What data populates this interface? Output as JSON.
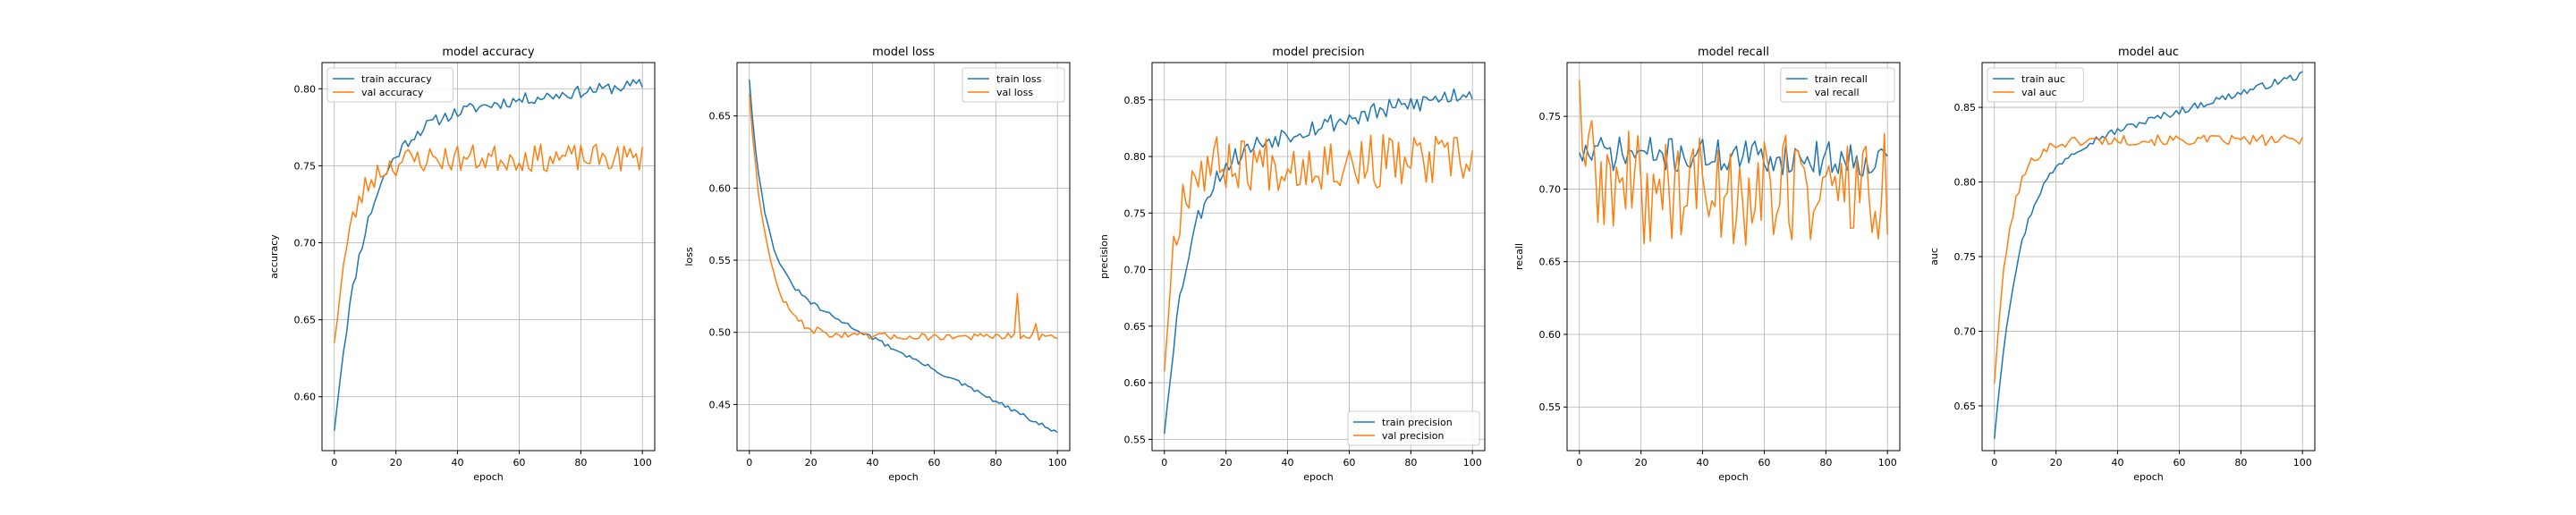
{
  "figure": {
    "background": "#ffffff"
  },
  "colors": {
    "train": "#1f77b4",
    "val": "#ff7f0e"
  },
  "chart_data": [
    {
      "type": "line",
      "title": "model accuracy",
      "xlabel": "epoch",
      "ylabel": "accuracy",
      "xlim": [
        -4,
        104
      ],
      "ylim": [
        0.565,
        0.817
      ],
      "xticks": [
        "0",
        "20",
        "40",
        "60",
        "80",
        "100"
      ],
      "yticks": [
        "0.60",
        "0.65",
        "0.70",
        "0.75",
        "0.80"
      ],
      "legend": "upper left",
      "grid": true,
      "series": [
        {
          "name": "train accuracy",
          "color": "#1f77b4",
          "start": 0.578,
          "end": 0.803,
          "k": 0.1,
          "w": 0.82,
          "lt": 0.1,
          "noise": 0.004,
          "seed": 11,
          "values": []
        },
        {
          "name": "val accuracy",
          "color": "#ff7f0e",
          "start": 0.635,
          "end": 0.755,
          "k": 0.18,
          "w": 0.97,
          "lt": 0.0,
          "noise": 0.009,
          "seed": 23,
          "values": []
        }
      ]
    },
    {
      "type": "line",
      "title": "model loss",
      "xlabel": "epoch",
      "ylabel": "loss",
      "xlim": [
        -4,
        104
      ],
      "ylim": [
        0.418,
        0.687
      ],
      "xticks": [
        "0",
        "20",
        "40",
        "60",
        "80",
        "100"
      ],
      "yticks": [
        "0.45",
        "0.50",
        "0.55",
        "0.60",
        "0.65"
      ],
      "legend": "upper right",
      "grid": true,
      "series": [
        {
          "name": "train loss",
          "color": "#1f77b4",
          "start": 0.675,
          "end": 0.43,
          "k": 0.2,
          "w": 0.55,
          "lt": 0.45,
          "noise": 0.0015,
          "seed": 31,
          "values": []
        },
        {
          "name": "val loss",
          "color": "#ff7f0e",
          "start": 0.665,
          "end": 0.497,
          "k": 0.17,
          "w": 0.98,
          "lt": 0.0,
          "noise": 0.0025,
          "seed": 47,
          "spikes": [
            [
              87,
              0.527
            ],
            [
              93,
              0.506
            ]
          ],
          "values": []
        }
      ]
    },
    {
      "type": "line",
      "title": "model precision",
      "xlabel": "epoch",
      "ylabel": "precision",
      "xlim": [
        -4,
        104
      ],
      "ylim": [
        0.54,
        0.883
      ],
      "xticks": [
        "0",
        "20",
        "40",
        "60",
        "80",
        "100"
      ],
      "yticks": [
        "0.55",
        "0.60",
        "0.65",
        "0.70",
        "0.75",
        "0.80",
        "0.85"
      ],
      "legend": "lower right",
      "grid": true,
      "series": [
        {
          "name": "train precision",
          "color": "#1f77b4",
          "start": 0.555,
          "end": 0.858,
          "k": 0.13,
          "w": 0.8,
          "lt": 0.2,
          "noise": 0.009,
          "seed": 53,
          "values": []
        },
        {
          "name": "val precision",
          "color": "#ff7f0e",
          "start": 0.61,
          "end": 0.795,
          "k": 0.3,
          "w": 1.0,
          "lt": 0.0,
          "noise": 0.025,
          "seed": 67,
          "values": []
        }
      ]
    },
    {
      "type": "line",
      "title": "model recall",
      "xlabel": "epoch",
      "ylabel": "recall",
      "xlim": [
        -4,
        104
      ],
      "ylim": [
        0.52,
        0.787
      ],
      "xticks": [
        "0",
        "20",
        "40",
        "60",
        "80",
        "100"
      ],
      "yticks": [
        "0.55",
        "0.60",
        "0.65",
        "0.70",
        "0.75"
      ],
      "legend": "upper right",
      "grid": true,
      "series": [
        {
          "name": "train recall",
          "color": "#1f77b4",
          "start": 0.725,
          "end": 0.72,
          "k": 0.5,
          "w": 0.0,
          "lt": 1.0,
          "noise": 0.012,
          "seed": 71,
          "values": []
        },
        {
          "name": "val recall",
          "color": "#ff7f0e",
          "start": 0.775,
          "end": 0.7,
          "k": 0.5,
          "w": 1.0,
          "lt": 0.0,
          "noise": 0.04,
          "seed": 89,
          "values": []
        }
      ]
    },
    {
      "type": "line",
      "title": "model auc",
      "xlabel": "epoch",
      "ylabel": "auc",
      "xlim": [
        -4,
        104
      ],
      "ylim": [
        0.62,
        0.88
      ],
      "xticks": [
        "0",
        "20",
        "40",
        "60",
        "80",
        "100"
      ],
      "yticks": [
        "0.65",
        "0.70",
        "0.75",
        "0.80",
        "0.85"
      ],
      "legend": "upper left",
      "grid": true,
      "series": [
        {
          "name": "train auc",
          "color": "#1f77b4",
          "start": 0.628,
          "end": 0.872,
          "k": 0.13,
          "w": 0.75,
          "lt": 0.25,
          "noise": 0.0025,
          "seed": 97,
          "values": []
        },
        {
          "name": "val auc",
          "color": "#ff7f0e",
          "start": 0.665,
          "end": 0.828,
          "k": 0.2,
          "w": 1.0,
          "lt": 0.0,
          "noise": 0.0035,
          "seed": 101,
          "values": []
        }
      ]
    }
  ]
}
